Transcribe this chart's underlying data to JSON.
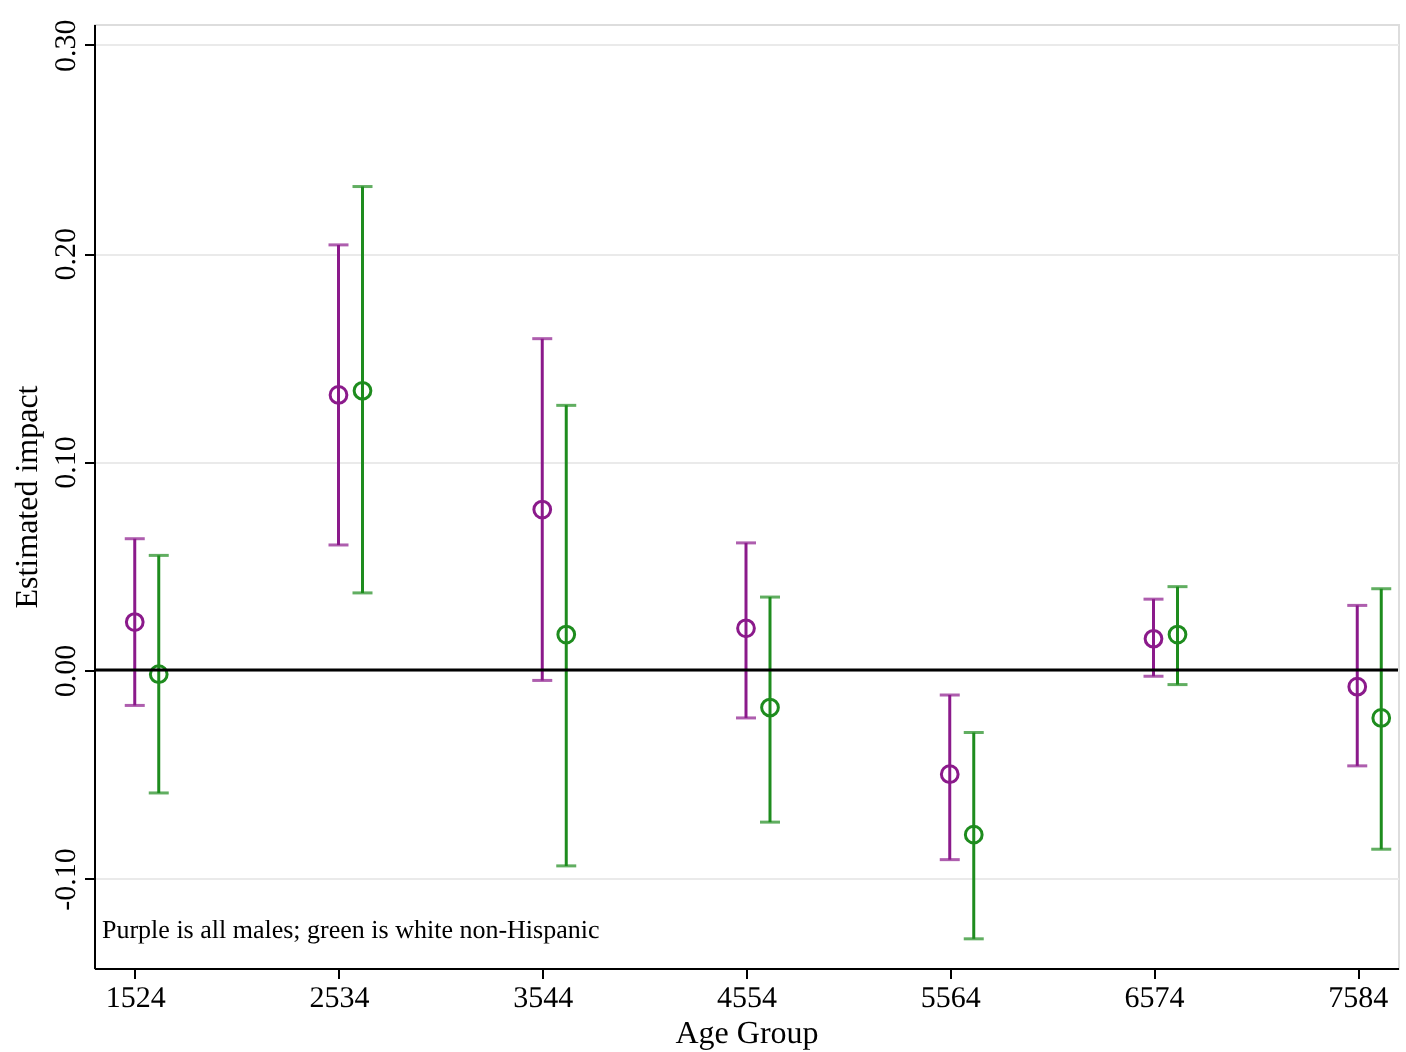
{
  "chart_data": {
    "type": "scatter",
    "xlabel": "Age Group",
    "ylabel": "Estimated impact",
    "categories": [
      "1524",
      "2534",
      "3544",
      "4554",
      "5564",
      "6574",
      "7584"
    ],
    "series": [
      {
        "color": "#8b1a8b",
        "values": [
          0.023,
          0.132,
          0.077,
          0.02,
          -0.05,
          0.015,
          -0.008
        ],
        "errors": [
          [
            -0.017,
            0.063
          ],
          [
            0.06,
            0.204
          ],
          [
            -0.005,
            0.159
          ],
          [
            -0.023,
            0.061
          ],
          [
            -0.091,
            -0.012
          ],
          [
            -0.003,
            0.034
          ],
          [
            -0.046,
            0.031
          ]
        ]
      },
      {
        "color": "#1e8c1e",
        "values": [
          -0.002,
          0.134,
          0.017,
          -0.018,
          -0.079,
          0.017,
          -0.023
        ],
        "errors": [
          [
            -0.059,
            0.055
          ],
          [
            0.037,
            0.232
          ],
          [
            -0.094,
            0.127
          ],
          [
            -0.073,
            0.035
          ],
          [
            -0.129,
            -0.03
          ],
          [
            -0.007,
            0.04
          ],
          [
            -0.086,
            0.039
          ]
        ]
      }
    ],
    "ylim": [
      -0.143,
      0.31
    ],
    "yticks": [
      {
        "value": -0.1,
        "label": "-0.10"
      },
      {
        "value": 0,
        "label": "0.00"
      },
      {
        "value": 0.1,
        "label": "0.10"
      },
      {
        "value": 0.2,
        "label": "0.20"
      },
      {
        "value": 0.3,
        "label": "0.30"
      }
    ],
    "ref_lines": [
      {
        "axis": "y",
        "value": 0,
        "color": "#000000"
      }
    ],
    "annotations": [
      "Purple is all males; green is white non-Hispanic"
    ],
    "marker": "circle",
    "grid": "y"
  }
}
